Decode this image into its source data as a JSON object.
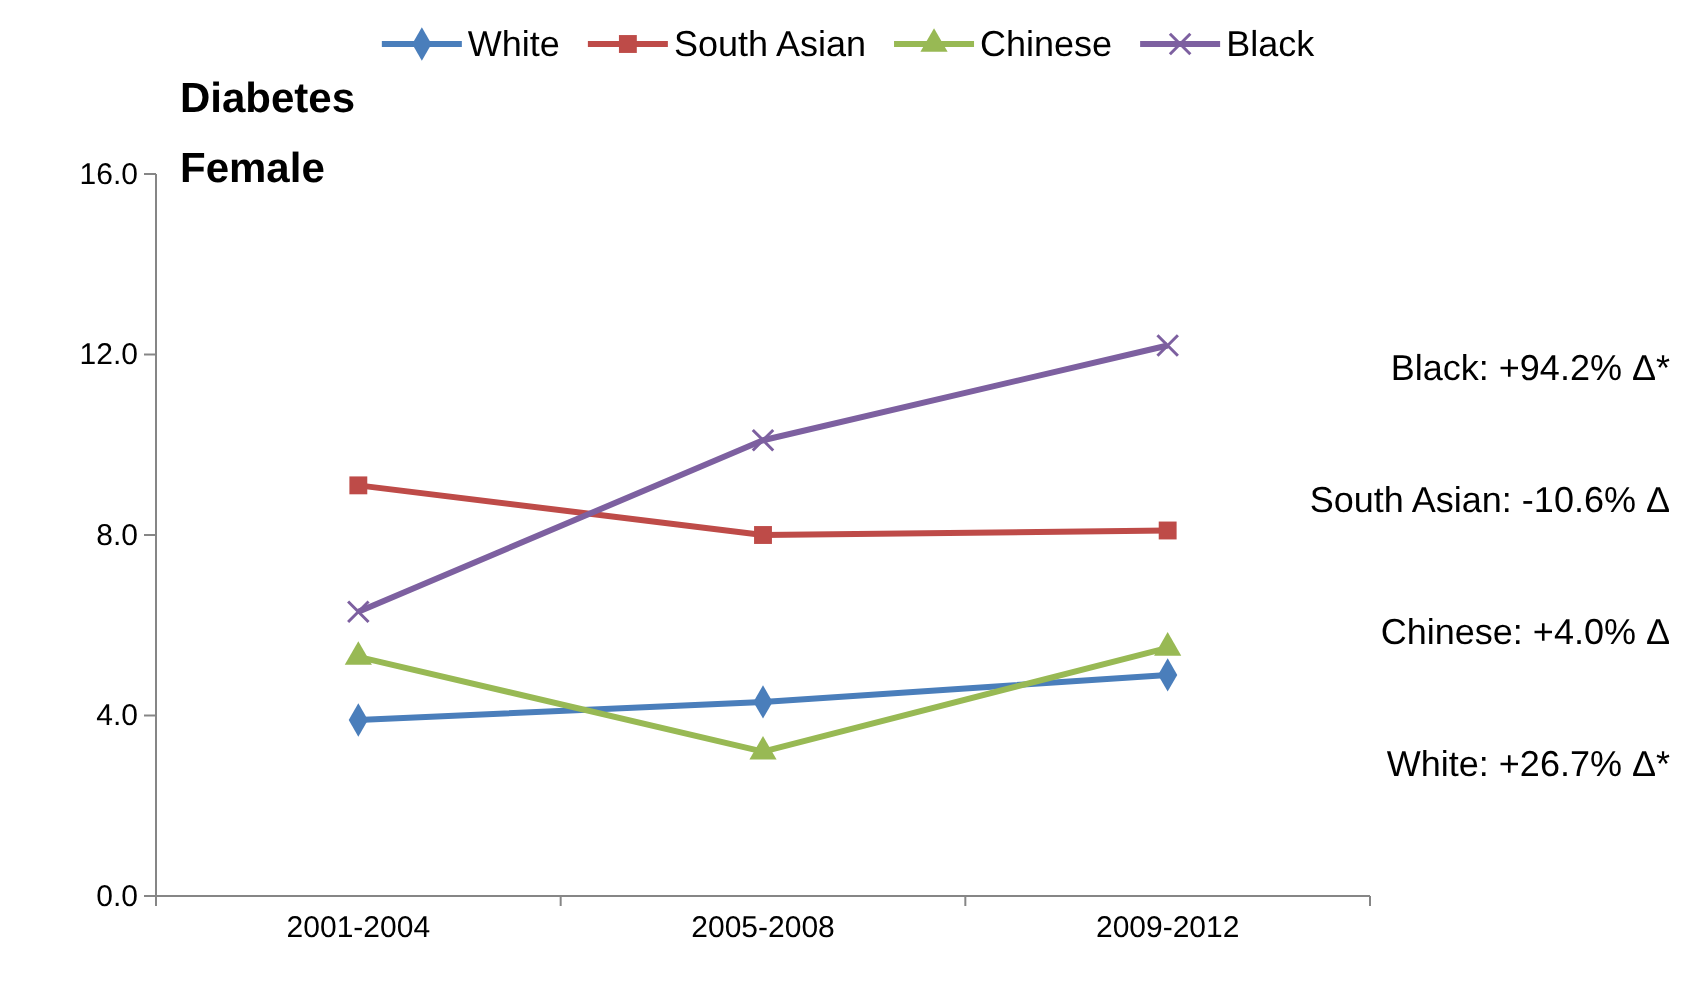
{
  "chart_data": {
    "type": "line",
    "title": "Diabetes",
    "subtitle": "Female",
    "categories": [
      "2001-2004",
      "2005-2008",
      "2009-2012"
    ],
    "series": [
      {
        "name": "White",
        "color": "#4a7ebb",
        "marker": "diamond",
        "values": [
          3.9,
          4.3,
          4.9
        ]
      },
      {
        "name": "South Asian",
        "color": "#be4b48",
        "marker": "square",
        "values": [
          9.1,
          8.0,
          8.1
        ]
      },
      {
        "name": "Chinese",
        "color": "#98b954",
        "marker": "triangle",
        "values": [
          5.3,
          3.2,
          5.5
        ]
      },
      {
        "name": "Black",
        "color": "#7d60a0",
        "marker": "cross",
        "values": [
          6.3,
          10.1,
          12.2
        ]
      }
    ],
    "ylim": [
      0,
      16
    ],
    "yticks": [
      {
        "value": 0,
        "label": "0.0"
      },
      {
        "value": 4,
        "label": "4.0"
      },
      {
        "value": 8,
        "label": "8.0"
      },
      {
        "value": 12,
        "label": "12.0"
      },
      {
        "value": 16,
        "label": "16.0"
      }
    ],
    "grid": false,
    "legend": "top",
    "annotations": [
      "Black: +94.2% Δ*",
      "South Asian: -10.6% Δ",
      "Chinese: +4.0% Δ",
      "White: +26.7% Δ*"
    ]
  }
}
